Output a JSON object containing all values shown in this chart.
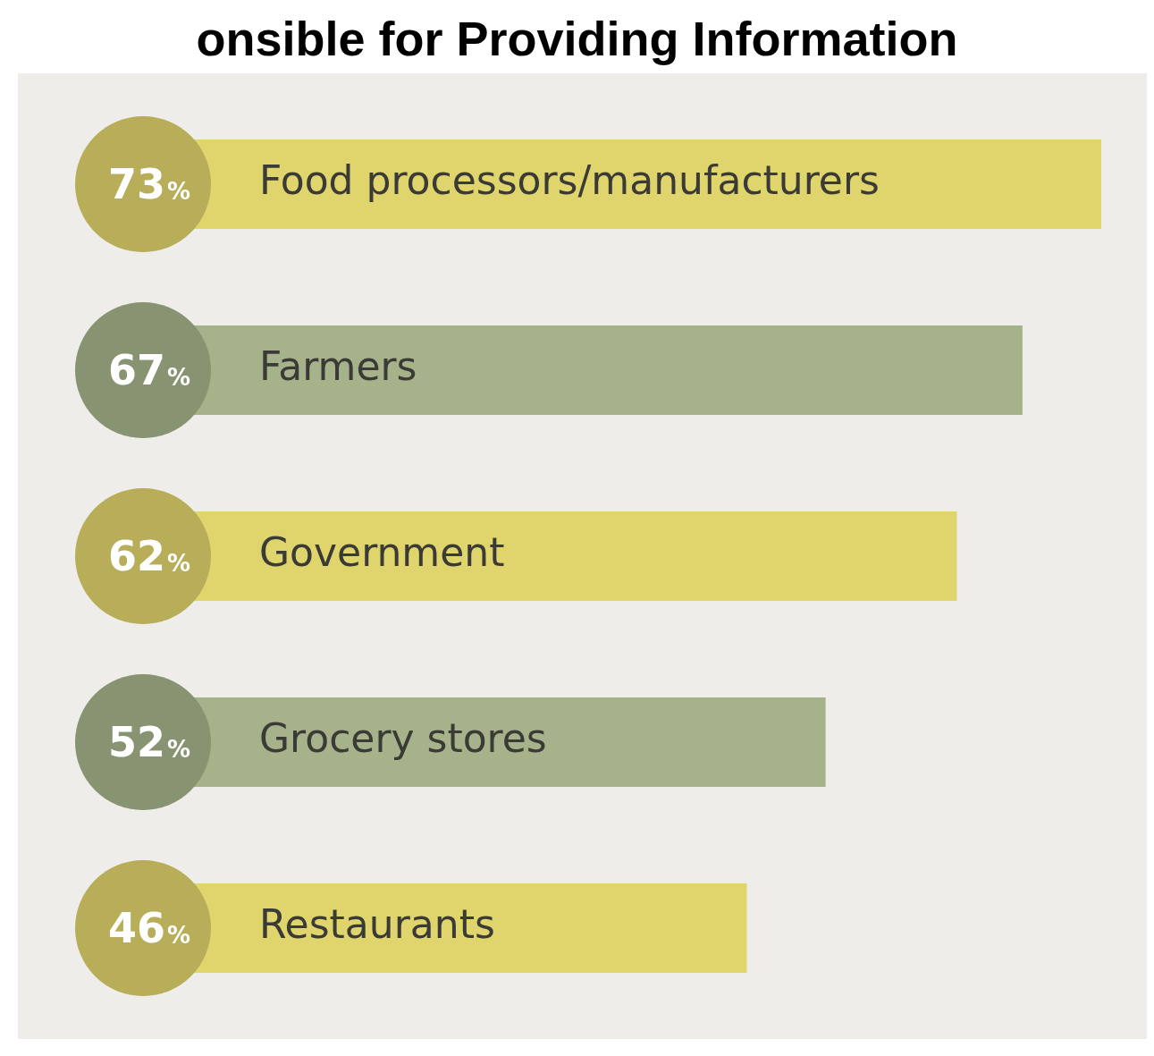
{
  "chart_data": {
    "type": "bar",
    "orientation": "horizontal",
    "title": "onsible for Providing Information",
    "categories": [
      "Food processors/manufacturers",
      "Farmers",
      "Government",
      "Grocery stores",
      "Restaurants"
    ],
    "values": [
      73,
      67,
      62,
      52,
      46
    ],
    "colors": [
      "#e0d46c",
      "#a6b38a",
      "#e0d46c",
      "#a6b38a",
      "#e0d46c"
    ],
    "value_labels": [
      "73%",
      "67%",
      "62%",
      "52%",
      "46%"
    ],
    "legend": false
  }
}
